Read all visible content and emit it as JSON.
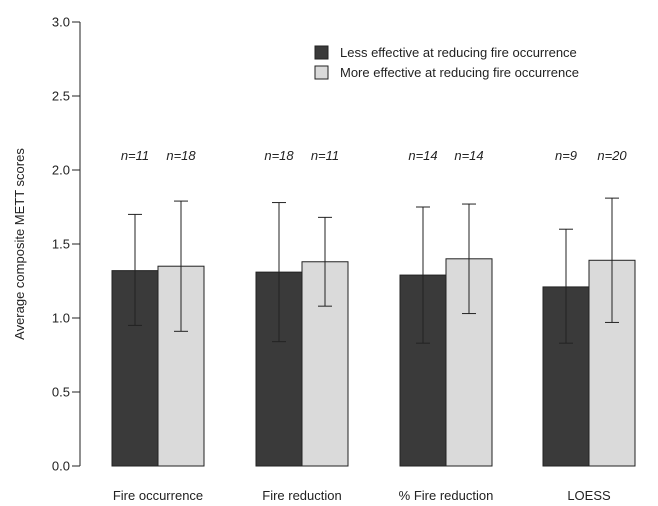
{
  "chart_data": {
    "type": "bar",
    "ylabel": "Average composite METT scores",
    "xlabel": "",
    "ylim": [
      0,
      3.0
    ],
    "yticks": [
      "0.0",
      "0.5",
      "1.0",
      "1.5",
      "2.0",
      "2.5",
      "3.0"
    ],
    "categories": [
      "Fire occurrence",
      "Fire reduction",
      "% Fire reduction",
      "LOESS"
    ],
    "series": [
      {
        "name": "Less effective at reducing fire occurrence",
        "color": "#3a3a3a",
        "values": [
          1.32,
          1.31,
          1.29,
          1.21
        ],
        "error_low": [
          0.95,
          0.84,
          0.83,
          0.83
        ],
        "error_high": [
          1.7,
          1.78,
          1.75,
          1.6
        ],
        "n_labels": [
          "n=11",
          "n=18",
          "n=14",
          "n=9"
        ]
      },
      {
        "name": "More effective at reducing fire occurrence",
        "color": "#dadada",
        "values": [
          1.35,
          1.38,
          1.4,
          1.39
        ],
        "error_low": [
          0.91,
          1.08,
          1.03,
          0.97
        ],
        "error_high": [
          1.79,
          1.68,
          1.77,
          1.81
        ],
        "n_labels": [
          "n=18",
          "n=11",
          "n=14",
          "n=20"
        ]
      }
    ],
    "legend_position": "top-right",
    "grid": false
  }
}
